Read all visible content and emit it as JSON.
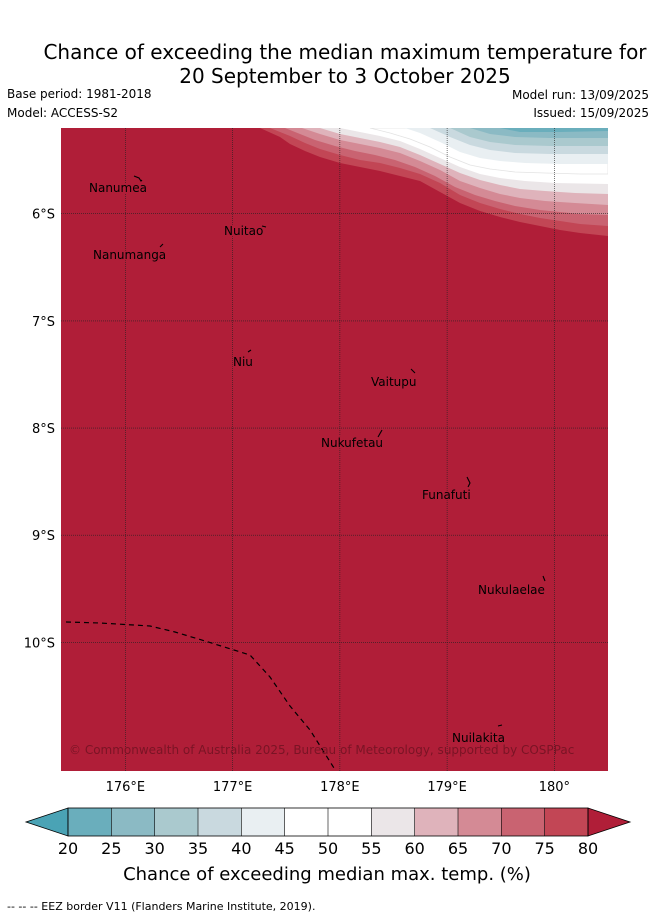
{
  "title": {
    "line1": "Chance of exceeding the median maximum temperature for",
    "line2": "20 September to 3 October 2025"
  },
  "meta": {
    "base_period": "Base period: 1981-2018",
    "model": "Model: ACCESS-S2",
    "model_run": "Model run: 13/09/2025",
    "issued": "Issued: 15/09/2025"
  },
  "map": {
    "lon_range": [
      175.4,
      180.5
    ],
    "lat_range": [
      -11.2,
      -5.2
    ],
    "x_ticks": [
      "176°E",
      "177°E",
      "178°E",
      "179°E",
      "180°"
    ],
    "y_ticks": [
      "6°S",
      "7°S",
      "8°S",
      "9°S",
      "10°S"
    ],
    "islands": [
      "Nanumea",
      "Nuitao",
      "Nanumanga",
      "Niu",
      "Vaitupu",
      "Nukufetau",
      "Funafuti",
      "Nukulaelae",
      "Nuilakita"
    ],
    "copyright": "© Commonwealth of Australia 2025, Bureau of Meteorology, supported by COSPPac",
    "background_class": "80",
    "colors": {
      "land_fill": "#b01e38",
      "grid": "#222222",
      "eez": "#000000"
    }
  },
  "colorbar": {
    "ticks": [
      "20",
      "25",
      "30",
      "35",
      "40",
      "45",
      "50",
      "55",
      "60",
      "65",
      "70",
      "75",
      "80"
    ],
    "colors": [
      "#4aa3b5",
      "#6aaebc",
      "#8bbac4",
      "#aac9ce",
      "#c9d9df",
      "#e9eff2",
      "#ffffff",
      "#ffffff",
      "#ebe6e8",
      "#dfb3bb",
      "#d48a95",
      "#c96371",
      "#c24655",
      "#b01e38"
    ],
    "label": "Chance of exceeding median max. temp. (%)"
  },
  "legend_footer": "-- -- -- EEZ border V11 (Flanders Marine Institute, 2019)."
}
